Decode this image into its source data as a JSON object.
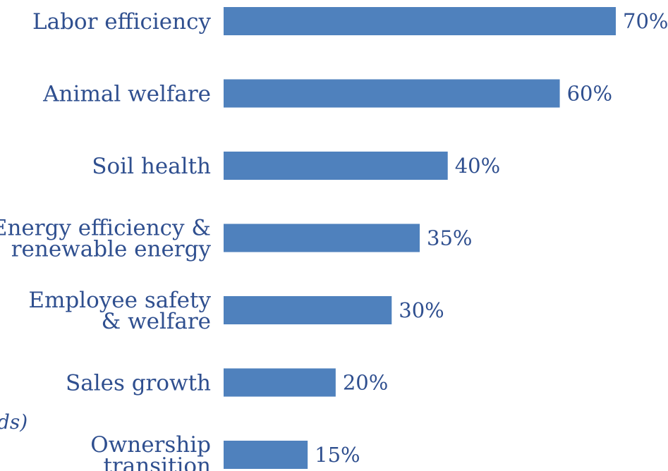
{
  "chart_data": {
    "type": "bar",
    "orientation": "horizontal",
    "categories": [
      [
        "Labor efficiency"
      ],
      [
        "Animal welfare"
      ],
      [
        "Soil health"
      ],
      [
        "Energy efficiency &",
        "renewable energy"
      ],
      [
        "Employee safety",
        "& welfare"
      ],
      [
        "Sales growth"
      ],
      [
        "Ownership",
        "transition"
      ]
    ],
    "values": [
      70,
      60,
      40,
      35,
      30,
      20,
      15
    ],
    "value_labels": [
      "70%",
      "60%",
      "40%",
      "35%",
      "30%",
      "20%",
      "15%"
    ],
    "xlim": [
      0,
      70
    ],
    "grid": false,
    "bar_color": "#4f81bd",
    "text_color": "#2f4f8f",
    "side_note": "ds)"
  }
}
